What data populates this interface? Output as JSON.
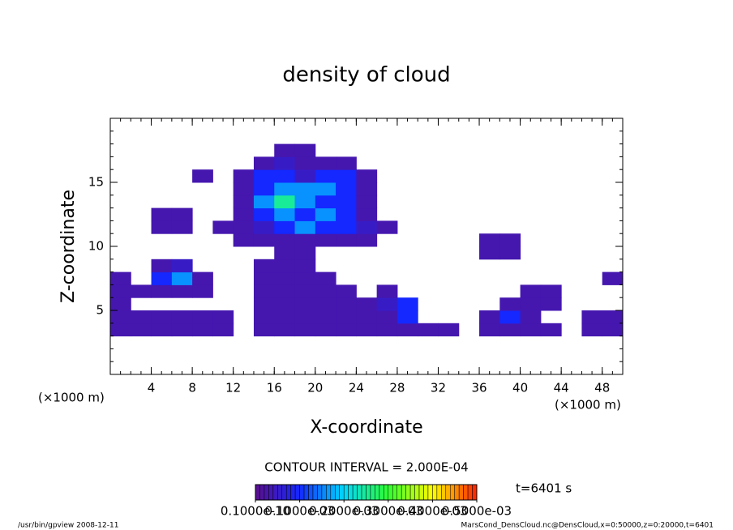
{
  "chart_data": {
    "type": "heatmap",
    "title": "density of cloud",
    "xlabel": "X-coordinate",
    "ylabel": "Z-coordinate",
    "xunit": "(×1000 m)",
    "yunit": "(×1000 m)",
    "xlim": [
      0,
      50
    ],
    "ylim": [
      0,
      20
    ],
    "xticks": [
      4,
      8,
      12,
      16,
      20,
      24,
      28,
      32,
      36,
      40,
      44,
      48
    ],
    "yticks": [
      5,
      10,
      15
    ],
    "minor_tick_step": 1,
    "x": [
      1,
      3,
      5,
      7,
      9,
      11,
      13,
      15,
      17,
      19,
      21,
      23,
      25,
      27,
      29,
      31,
      33,
      35,
      37,
      39,
      41,
      43,
      45,
      47,
      49
    ],
    "z": [
      3.5,
      4.5,
      5.5,
      6.5,
      7.5,
      8.5,
      9.5,
      10.5,
      11.5,
      12.5,
      13.5,
      14.5,
      15.5,
      16.5,
      17.5
    ],
    "values": [
      [
        3e-05,
        3e-05,
        3e-05,
        3e-05,
        3e-05,
        3e-05,
        0,
        3e-05,
        3e-05,
        3e-05,
        3e-05,
        3e-05,
        3e-05,
        3e-05,
        3e-05,
        3e-05,
        3e-05,
        0,
        3e-05,
        3e-05,
        3e-05,
        3e-05,
        0,
        3e-05,
        3e-05
      ],
      [
        3e-05,
        3e-05,
        3e-05,
        3e-05,
        3e-05,
        3e-05,
        0,
        3e-05,
        3e-05,
        3e-05,
        3e-05,
        3e-05,
        3e-05,
        3e-05,
        0.0001,
        0,
        0,
        0,
        3e-05,
        0.0001,
        3e-05,
        0,
        0,
        3e-05,
        3e-05
      ],
      [
        3e-05,
        0,
        0,
        0,
        0,
        0,
        0,
        3e-05,
        3e-05,
        3e-05,
        3e-05,
        3e-05,
        3e-05,
        5e-05,
        0.0001,
        0,
        0,
        0,
        0,
        3e-05,
        3e-05,
        3e-05,
        0,
        0,
        0
      ],
      [
        3e-05,
        3e-05,
        3e-05,
        3e-05,
        3e-05,
        0,
        0,
        3e-05,
        3e-05,
        3e-05,
        3e-05,
        3e-05,
        0,
        3e-05,
        0,
        0,
        0,
        0,
        0,
        0,
        3e-05,
        3e-05,
        0,
        0,
        0
      ],
      [
        3e-05,
        0,
        0.0001,
        0.00016,
        3e-05,
        0,
        0,
        3e-05,
        3e-05,
        3e-05,
        3e-05,
        0,
        0,
        0,
        0,
        0,
        0,
        0,
        0,
        0,
        0,
        0,
        0,
        0,
        3e-05
      ],
      [
        0,
        0,
        3e-05,
        5e-05,
        0,
        0,
        0,
        3e-05,
        3e-05,
        3e-05,
        0,
        0,
        0,
        0,
        0,
        0,
        0,
        0,
        0,
        0,
        0,
        0,
        0,
        0,
        0
      ],
      [
        0,
        0,
        0,
        0,
        0,
        0,
        0,
        0,
        3e-05,
        3e-05,
        0,
        0,
        0,
        0,
        0,
        0,
        0,
        0,
        3e-05,
        3e-05,
        0,
        0,
        0,
        0,
        0
      ],
      [
        0,
        0,
        0,
        0,
        0,
        0,
        3e-05,
        3e-05,
        3e-05,
        3e-05,
        3e-05,
        3e-05,
        3e-05,
        0,
        0,
        0,
        0,
        0,
        3e-05,
        3e-05,
        0,
        0,
        0,
        0,
        0
      ],
      [
        0,
        0,
        3e-05,
        3e-05,
        0,
        3e-05,
        3e-05,
        5e-05,
        0.0001,
        0.00016,
        0.0001,
        0.0001,
        5e-05,
        3e-05,
        0,
        0,
        0,
        0,
        0,
        0,
        0,
        0,
        0,
        0,
        0
      ],
      [
        0,
        0,
        3e-05,
        3e-05,
        0,
        0,
        3e-05,
        0.0001,
        0.00016,
        0.0001,
        0.00016,
        0.0001,
        3e-05,
        0,
        0,
        0,
        0,
        0,
        0,
        0,
        0,
        0,
        0,
        0,
        0
      ],
      [
        0,
        0,
        0,
        0,
        0,
        0,
        3e-05,
        0.00016,
        0.00025,
        0.00016,
        0.0001,
        0.0001,
        3e-05,
        0,
        0,
        0,
        0,
        0,
        0,
        0,
        0,
        0,
        0,
        0,
        0
      ],
      [
        0,
        0,
        0,
        0,
        0,
        0,
        3e-05,
        0.0001,
        0.00016,
        0.00016,
        0.00016,
        0.0001,
        3e-05,
        0,
        0,
        0,
        0,
        0,
        0,
        0,
        0,
        0,
        0,
        0,
        0
      ],
      [
        0,
        0,
        0,
        0,
        3e-05,
        0,
        3e-05,
        0.0001,
        0.0001,
        5e-05,
        0.0001,
        0.0001,
        3e-05,
        0,
        0,
        0,
        0,
        0,
        0,
        0,
        0,
        0,
        0,
        0,
        0
      ],
      [
        0,
        0,
        0,
        0,
        0,
        0,
        0,
        3e-05,
        5e-05,
        3e-05,
        3e-05,
        3e-05,
        0,
        0,
        0,
        0,
        0,
        0,
        0,
        0,
        0,
        0,
        0,
        0,
        0
      ],
      [
        0,
        0,
        0,
        0,
        0,
        0,
        0,
        0,
        3e-05,
        3e-05,
        0,
        0,
        0,
        0,
        0,
        0,
        0,
        0,
        0,
        0,
        0,
        0,
        0,
        0,
        0
      ]
    ],
    "clim": [
      0,
      0.0005
    ],
    "colormap": [
      "#5a0f8c",
      "#1428ff",
      "#00d8ff",
      "#30ff30",
      "#ffff00",
      "#ff2000"
    ],
    "colorbar_ticks": [
      {
        "value": 1e-11,
        "label": "0.1000e-10"
      },
      {
        "value": 0.0001,
        "label": "0.1000e-03"
      },
      {
        "value": 0.0002,
        "label": "0.2000e-03"
      },
      {
        "value": 0.0003,
        "label": "0.3000e-03"
      },
      {
        "value": 0.0004,
        "label": "0.4000e-03"
      },
      {
        "value": 0.0005,
        "label": "0.5000e-03"
      }
    ],
    "contour_interval": "CONTOUR INTERVAL = 2.000E-04",
    "time_label": "t=6401 s",
    "footer_left": "/usr/bin/gpview  2008-12-11",
    "footer_right": "MarsCond_DensCloud.nc@DensCloud,x=0:50000,z=0:20000,t=6401"
  }
}
